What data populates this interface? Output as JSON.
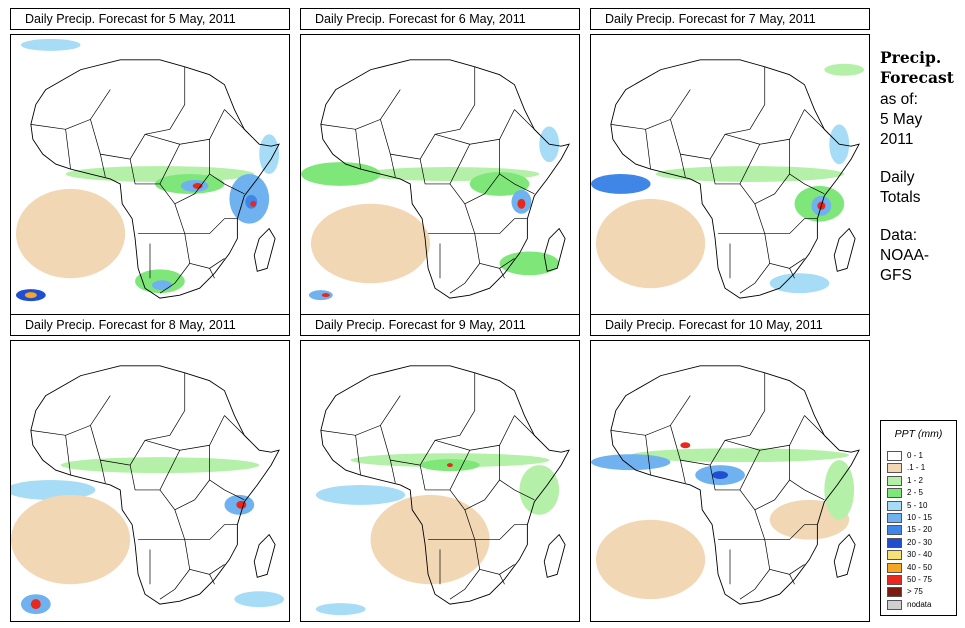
{
  "panels": [
    {
      "title": "Daily Precip. Forecast for  5 May, 2011"
    },
    {
      "title": "Daily Precip. Forecast for  6 May, 2011"
    },
    {
      "title": "Daily Precip. Forecast for  7 May, 2011"
    },
    {
      "title": "Daily Precip. Forecast for  8 May, 2011"
    },
    {
      "title": "Daily Precip. Forecast for  9 May, 2011"
    },
    {
      "title": "Daily Precip. Forecast for  10 May, 2011"
    }
  ],
  "sidebar": {
    "heading_line1": "Precip.",
    "heading_line2": "Forecast",
    "asof_label": "as of:",
    "asof_date_line1": "5 May",
    "asof_date_line2": "2011",
    "totals_line1": "Daily",
    "totals_line2": "Totals",
    "data_label": "Data:",
    "data_source_line1": "NOAA-",
    "data_source_line2": "GFS"
  },
  "legend": {
    "title": "PPT (mm)",
    "items": [
      {
        "label": "0 - 1",
        "color": "#ffffff"
      },
      {
        "label": ".1 - 1",
        "color": "#f2d7b5"
      },
      {
        "label": "1 - 2",
        "color": "#b4f0a8"
      },
      {
        "label": "2 - 5",
        "color": "#7fe77a"
      },
      {
        "label": "5 - 10",
        "color": "#a6dcf5"
      },
      {
        "label": "10 - 15",
        "color": "#6fb2ef"
      },
      {
        "label": "15 - 20",
        "color": "#3f86e6"
      },
      {
        "label": "20 - 30",
        "color": "#1f4fd0"
      },
      {
        "label": "30 - 40",
        "color": "#f7e27a"
      },
      {
        "label": "40 - 50",
        "color": "#f5a623"
      },
      {
        "label": "50 - 75",
        "color": "#e8281c"
      },
      {
        "label": "> 75",
        "color": "#7a1d10"
      },
      {
        "label": "nodata",
        "color": "#cfcfcf"
      }
    ]
  }
}
